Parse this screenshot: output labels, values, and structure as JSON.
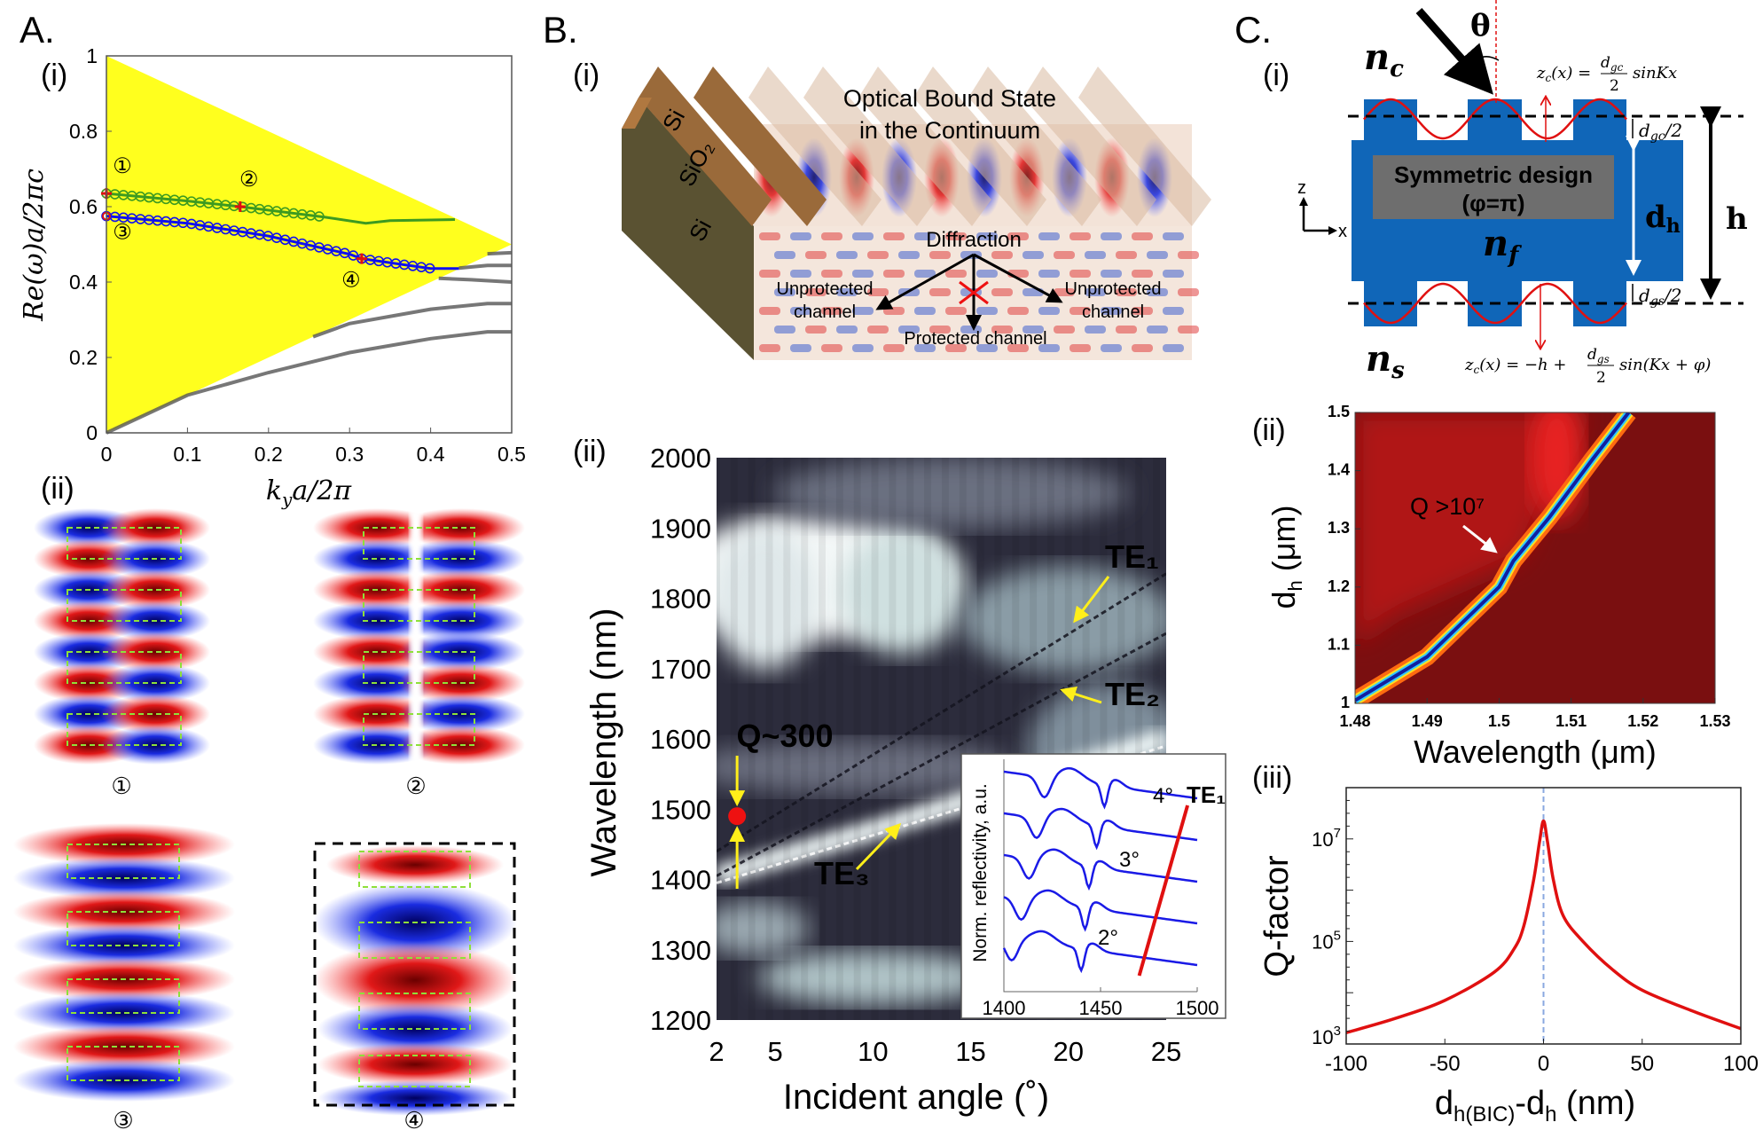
{
  "panel_labels": {
    "A": "A.",
    "B": "B.",
    "C": "C.",
    "A_i": "(i)",
    "A_ii": "(ii)",
    "B_i": "(i)",
    "B_ii": "(ii)",
    "C_i": "(i)",
    "C_ii": "(ii)",
    "C_iii": "(iii)"
  },
  "field_maps": {
    "labels": [
      "①",
      "②",
      "③",
      "④"
    ]
  },
  "diagram_B": {
    "title_1": "Optical Bound State",
    "title_2": "in the Continuum",
    "layers": [
      "Si",
      "SiO₂",
      "Si"
    ],
    "diffraction": "Diffraction",
    "unprotected_left": [
      "Unprotected",
      "channel"
    ],
    "unprotected_right": [
      "Unprotected",
      "channel"
    ],
    "protected": "Protected channel"
  },
  "diagram_C": {
    "n_c": "n",
    "n_c_sub": "c",
    "n_f": "n",
    "n_f_sub": "f",
    "n_s": "n",
    "n_s_sub": "s",
    "theta": "θ",
    "design_1": "Symmetric design",
    "design_2": "(φ=π)",
    "axis_z": "z",
    "axis_x": "x",
    "d_h": "d",
    "d_h_sub": "h",
    "h": "h",
    "dgc": "d",
    "dgc_sub": "gc",
    "dgc_tail": "/2",
    "dgs": "d",
    "dgs_sub": "gs",
    "dgs_tail": "/2",
    "formula_top": {
      "lhs": "z",
      "lhs_sub": "c",
      "mid": "(x) =",
      "num": "d",
      "num_sub": "gc",
      "den": "2",
      "tail": "sinKx"
    },
    "formula_bottom": {
      "lhs": "z",
      "lhs_sub": "c",
      "mid": "(x) = −h +",
      "num": "d",
      "num_sub": "gs",
      "den": "2",
      "tail": "sin(Kx + φ)"
    }
  },
  "colors": {
    "light_cone": "#ffff1e",
    "green_band": "#3d9a20",
    "blue_band": "#1010ee",
    "marker": "#ee1111",
    "structure": "#1066b8",
    "annotation": "#ffef1a"
  },
  "chart_data": [
    {
      "id": "A_i",
      "type": "line",
      "xlabel_main": "k",
      "xlabel_sub": "y",
      "xlabel_tail": "a/2π",
      "ylabel": "Re(ω)a/2πc",
      "xlim": [
        0,
        0.5
      ],
      "ylim": [
        0,
        1
      ],
      "xticks": [
        "0",
        "0.1",
        "0.2",
        "0.3",
        "0.4",
        "0.5"
      ],
      "yticks": [
        "0",
        "0.2",
        "0.4",
        "0.6",
        "0.8",
        "1"
      ],
      "light_cone": [
        [
          0,
          0
        ],
        [
          0,
          1
        ],
        [
          0.5,
          0.5
        ]
      ],
      "series": [
        {
          "name": "green-band",
          "color": "#3d9a20",
          "points": [
            [
              0,
              0.635
            ],
            [
              0.1,
              0.615
            ],
            [
              0.165,
              0.6
            ],
            [
              0.27,
              0.572
            ],
            [
              0.32,
              0.556
            ],
            [
              0.35,
              0.563
            ],
            [
              0.43,
              0.566
            ]
          ],
          "markers_until": 0.27
        },
        {
          "name": "blue-band",
          "color": "#1010ee",
          "points": [
            [
              0,
              0.575
            ],
            [
              0.1,
              0.556
            ],
            [
              0.2,
              0.522
            ],
            [
              0.3,
              0.474
            ],
            [
              0.315,
              0.462
            ],
            [
              0.4,
              0.436
            ],
            [
              0.435,
              0.436
            ]
          ],
          "markers_until": 0.4
        },
        {
          "name": "guided-1",
          "color": "#555555",
          "points": [
            [
              0,
              0
            ],
            [
              0.1,
              0.1
            ],
            [
              0.2,
              0.16
            ],
            [
              0.3,
              0.213
            ],
            [
              0.4,
              0.25
            ],
            [
              0.47,
              0.268
            ],
            [
              0.5,
              0.268
            ]
          ]
        },
        {
          "name": "guided-2",
          "color": "#555555",
          "points": [
            [
              0.255,
              0.255
            ],
            [
              0.3,
              0.29
            ],
            [
              0.4,
              0.328
            ],
            [
              0.47,
              0.343
            ],
            [
              0.5,
              0.343
            ]
          ]
        },
        {
          "name": "guided-3",
          "color": "#555555",
          "points": [
            [
              0.41,
              0.41
            ],
            [
              0.45,
              0.406
            ],
            [
              0.5,
              0.4
            ]
          ]
        },
        {
          "name": "guided-4",
          "color": "#555555",
          "points": [
            [
              0.435,
              0.437
            ],
            [
              0.47,
              0.444
            ],
            [
              0.5,
              0.444
            ]
          ]
        },
        {
          "name": "guided-5",
          "color": "#555555",
          "points": [
            [
              0.47,
              0.475
            ],
            [
              0.5,
              0.478
            ]
          ]
        }
      ],
      "marked_points": [
        {
          "label": "①",
          "k": 0,
          "w": 0.635
        },
        {
          "label": "②",
          "k": 0.165,
          "w": 0.6
        },
        {
          "label": "③",
          "k": 0,
          "w": 0.575
        },
        {
          "label": "④",
          "k": 0.315,
          "w": 0.462
        }
      ]
    },
    {
      "id": "B_ii",
      "type": "heatmap",
      "xlabel": "Incident angle (˚)",
      "ylabel": "Wavelength (nm)",
      "xlim": [
        2,
        25
      ],
      "ylim": [
        1200,
        2000
      ],
      "xticks": [
        2,
        5,
        10,
        15,
        20,
        25
      ],
      "yticks": [
        1200,
        1300,
        1400,
        1500,
        1600,
        1700,
        1800,
        1900,
        2000
      ],
      "modes": [
        {
          "name": "TE₁",
          "line": [
            [
              2,
              1440
            ],
            [
              25,
              1835
            ]
          ]
        },
        {
          "name": "TE₂",
          "line": [
            [
              2,
              1405
            ],
            [
              25,
              1750
            ]
          ]
        },
        {
          "name": "TE₃",
          "line": [
            [
              2,
              1395
            ],
            [
              25,
              1590
            ]
          ]
        }
      ],
      "annotations": [
        {
          "text": "Q~300",
          "angle": 3,
          "wavelength": 1490
        },
        {
          "text": "TE₁"
        },
        {
          "text": "TE₂"
        },
        {
          "text": "TE₃"
        }
      ]
    },
    {
      "id": "B_ii_inset",
      "type": "line",
      "ylabel": "Norm. reflectivity, a.u.",
      "xlim": [
        1400,
        1500
      ],
      "xticks": [
        1400,
        1450,
        1500
      ],
      "angle_labels": [
        "4°",
        "3°",
        "2°"
      ],
      "te_label": "TE₁",
      "series": [
        {
          "name": "curve-1",
          "dips": [
            1421,
            1452
          ]
        },
        {
          "name": "curve-2",
          "dips": [
            1417,
            1448
          ]
        },
        {
          "name": "curve-3",
          "dips": [
            1413,
            1444
          ]
        },
        {
          "name": "curve-4",
          "dips": [
            1409,
            1442
          ]
        },
        {
          "name": "curve-5",
          "dips": [
            1404,
            1440
          ]
        }
      ],
      "te1_trace": [
        [
          1470,
          1
        ],
        [
          1495,
          0
        ]
      ]
    },
    {
      "id": "C_ii",
      "type": "heatmap",
      "xlabel": "Wavelength (μm)",
      "ylabel_main": "d",
      "ylabel_sub": "h",
      "ylabel_tail": " (μm)",
      "xlim": [
        1.48,
        1.53
      ],
      "ylim": [
        1,
        1.5
      ],
      "xticks": [
        "1.48",
        "1.49",
        "1.5",
        "1.51",
        "1.52",
        "1.53"
      ],
      "yticks": [
        "1",
        "1.1",
        "1.2",
        "1.3",
        "1.4",
        "1.5"
      ],
      "resonance": [
        [
          1.48,
          1.005
        ],
        [
          1.49,
          1.08
        ],
        [
          1.5,
          1.2
        ],
        [
          1.502,
          1.245
        ],
        [
          1.507,
          1.32
        ],
        [
          1.513,
          1.42
        ],
        [
          1.518,
          1.5
        ]
      ],
      "annotation": "Q >10⁷",
      "bic_point": [
        1.502,
        1.25
      ]
    },
    {
      "id": "C_iii",
      "type": "line",
      "xlabel_parts": [
        "d",
        "h(BIC)",
        "-d",
        "h",
        "  (nm)"
      ],
      "ylabel": "Q-factor",
      "xlim": [
        -100,
        100
      ],
      "ylim_log10": [
        3,
        8
      ],
      "xticks": [
        "-100",
        "-50",
        "0",
        "50",
        "100"
      ],
      "yticks": [
        {
          "label": "10",
          "exp": "3",
          "v": 3
        },
        {
          "label": "10",
          "exp": "5",
          "v": 5
        },
        {
          "label": "10",
          "exp": "7",
          "v": 7
        }
      ],
      "series": [
        {
          "name": "Q",
          "color": "#e01010",
          "x": [
            -100,
            -75,
            -50,
            -25,
            -15,
            -10,
            -5,
            -2,
            0,
            2,
            5,
            10,
            20,
            35,
            50,
            75,
            100
          ],
          "log10Q": [
            3.22,
            3.5,
            3.85,
            4.4,
            4.85,
            5.3,
            6.2,
            6.95,
            7.35,
            6.95,
            6.2,
            5.5,
            5.0,
            4.45,
            4.05,
            3.65,
            3.3
          ]
        }
      ],
      "reference_x": 0
    }
  ]
}
